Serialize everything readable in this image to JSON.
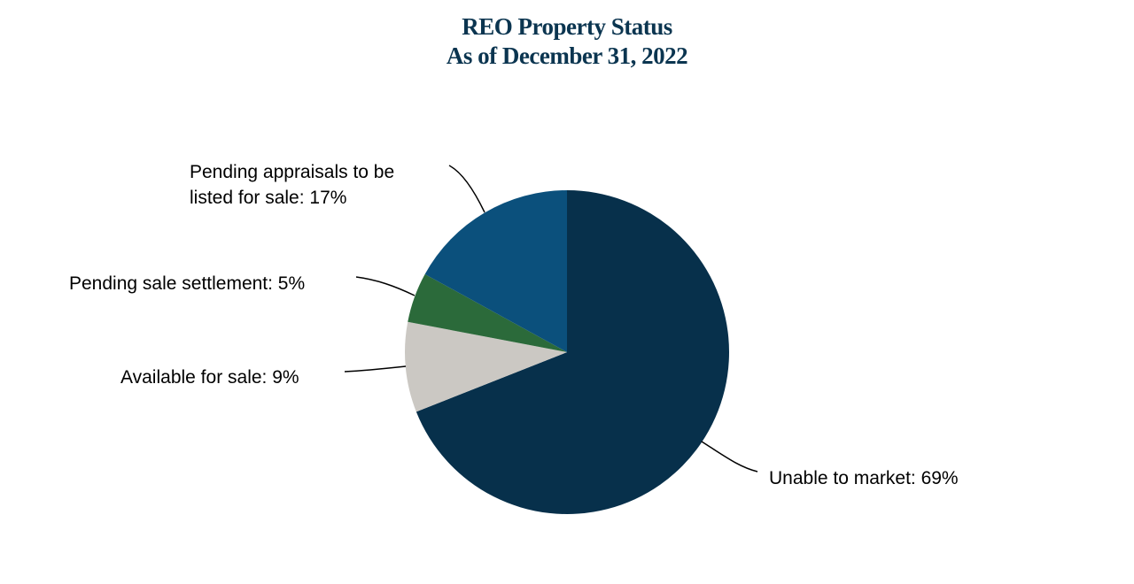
{
  "title_line1": "REO Property Status",
  "title_line2": "As of December 31, 2022",
  "chart_data": {
    "type": "pie",
    "title": "REO Property Status As of December 31, 2022",
    "slices": [
      {
        "label": "Unable to market",
        "value": 69,
        "display": "Unable to market: 69%",
        "color": "#07304b"
      },
      {
        "label": "Available for sale",
        "value": 9,
        "display": "Available for sale: 9%",
        "color": "#cbc8c3"
      },
      {
        "label": "Pending sale settlement",
        "value": 5,
        "display": "Pending sale settlement: 5%",
        "color": "#2b6a3a"
      },
      {
        "label": "Pending appraisals to be listed for sale",
        "value": 17,
        "display_lines": [
          "Pending appraisals to be",
          "listed for sale: 17%"
        ],
        "color": "#0b507c"
      }
    ],
    "legend": "none",
    "unit": "%"
  }
}
